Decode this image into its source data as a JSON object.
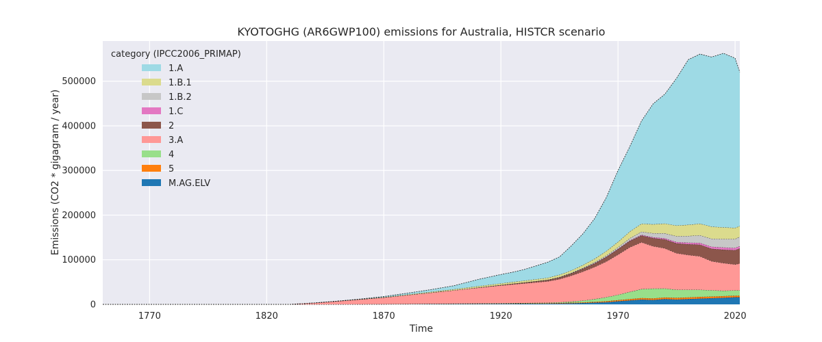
{
  "chart_data": {
    "type": "area",
    "title": "KYOTOGHG (AR6GWP100) emissions for Australia, HISTCR scenario",
    "xlabel": "Time",
    "ylabel": "Emissions (CO2 * gigagram / year)",
    "xlim": [
      1750,
      2022
    ],
    "ylim": [
      0,
      590000
    ],
    "xticks": [
      1770,
      1820,
      1870,
      1920,
      1970,
      2020
    ],
    "yticks": [
      0,
      100000,
      200000,
      300000,
      400000,
      500000
    ],
    "grid": true,
    "legend_title": "category (IPCC2006_PRIMAP)",
    "legend_position": "top-left",
    "stacked": true,
    "x": [
      1750,
      1830,
      1840,
      1850,
      1860,
      1870,
      1880,
      1890,
      1900,
      1910,
      1920,
      1925,
      1930,
      1935,
      1940,
      1945,
      1950,
      1955,
      1960,
      1965,
      1970,
      1975,
      1980,
      1985,
      1990,
      1995,
      2000,
      2005,
      2010,
      2015,
      2020,
      2022
    ],
    "series": [
      {
        "name": "M.AG.ELV",
        "color": "#1f77b4",
        "values": [
          0,
          0,
          0,
          100,
          200,
          300,
          500,
          700,
          900,
          1100,
          1300,
          1400,
          1500,
          1600,
          1700,
          2000,
          2500,
          3000,
          4000,
          5000,
          7000,
          9000,
          11000,
          10000,
          12000,
          11000,
          12000,
          13000,
          14000,
          15000,
          16000,
          16000
        ]
      },
      {
        "name": "5",
        "color": "#ff7f0e",
        "values": [
          0,
          0,
          0,
          0,
          100,
          100,
          200,
          300,
          400,
          500,
          600,
          700,
          800,
          900,
          1000,
          1100,
          1300,
          1500,
          1800,
          2100,
          2500,
          2900,
          3200,
          3400,
          3600,
          3700,
          3800,
          3800,
          3700,
          3600,
          3500,
          3500
        ]
      },
      {
        "name": "4",
        "color": "#98df8a",
        "values": [
          0,
          0,
          0,
          0,
          0,
          100,
          200,
          300,
          400,
          500,
          600,
          700,
          800,
          900,
          1000,
          1500,
          2500,
          4000,
          6000,
          9000,
          12000,
          16000,
          20000,
          22000,
          20000,
          18000,
          17000,
          16000,
          14000,
          12000,
          12000,
          12000
        ]
      },
      {
        "name": "3.A",
        "color": "#ff9896",
        "values": [
          0,
          0,
          3000,
          7000,
          11000,
          15000,
          20000,
          25000,
          30000,
          35000,
          40000,
          42000,
          44000,
          46000,
          48000,
          52000,
          58000,
          65000,
          72000,
          80000,
          90000,
          100000,
          105000,
          95000,
          90000,
          82000,
          78000,
          75000,
          65000,
          62000,
          58000,
          60000
        ]
      },
      {
        "name": "2",
        "color": "#8c564b",
        "values": [
          0,
          0,
          0,
          0,
          0,
          0,
          0,
          0,
          0,
          500,
          1000,
          1500,
          2000,
          2500,
          3000,
          4000,
          5000,
          6500,
          8000,
          10000,
          12000,
          14000,
          15000,
          18000,
          20000,
          22000,
          24000,
          26000,
          28000,
          30000,
          32000,
          34000
        ]
      },
      {
        "name": "1.C",
        "color": "#e377c2",
        "values": [
          0,
          0,
          0,
          0,
          0,
          0,
          0,
          0,
          0,
          0,
          0,
          0,
          0,
          0,
          100,
          200,
          300,
          400,
          600,
          800,
          1000,
          1200,
          1500,
          2000,
          2500,
          3000,
          3500,
          4000,
          4500,
          5000,
          5000,
          5000
        ]
      },
      {
        "name": "1.B.2",
        "color": "#c7c7c7",
        "values": [
          0,
          0,
          0,
          0,
          0,
          0,
          0,
          0,
          0,
          0,
          0,
          0,
          100,
          200,
          300,
          500,
          800,
          1200,
          1800,
          2500,
          3500,
          5000,
          7000,
          9000,
          11000,
          13000,
          15000,
          17000,
          18000,
          19000,
          20000,
          21000
        ]
      },
      {
        "name": "1.B.1",
        "color": "#dbdb8d",
        "values": [
          0,
          0,
          0,
          0,
          300,
          700,
          1200,
          1700,
          2200,
          3000,
          3500,
          3800,
          4000,
          4200,
          4500,
          5000,
          5500,
          6500,
          8000,
          10000,
          12000,
          15000,
          18000,
          20000,
          22000,
          24000,
          25000,
          26000,
          27000,
          26000,
          25000,
          24000
        ]
      },
      {
        "name": "1.A",
        "color": "#9edae5",
        "values": [
          0,
          0,
          0,
          0,
          500,
          1500,
          3000,
          5000,
          8000,
          15000,
          20000,
          22000,
          25000,
          30000,
          35000,
          40000,
          55000,
          70000,
          90000,
          120000,
          160000,
          190000,
          230000,
          270000,
          290000,
          330000,
          370000,
          380000,
          380000,
          390000,
          380000,
          345000
        ]
      }
    ]
  }
}
